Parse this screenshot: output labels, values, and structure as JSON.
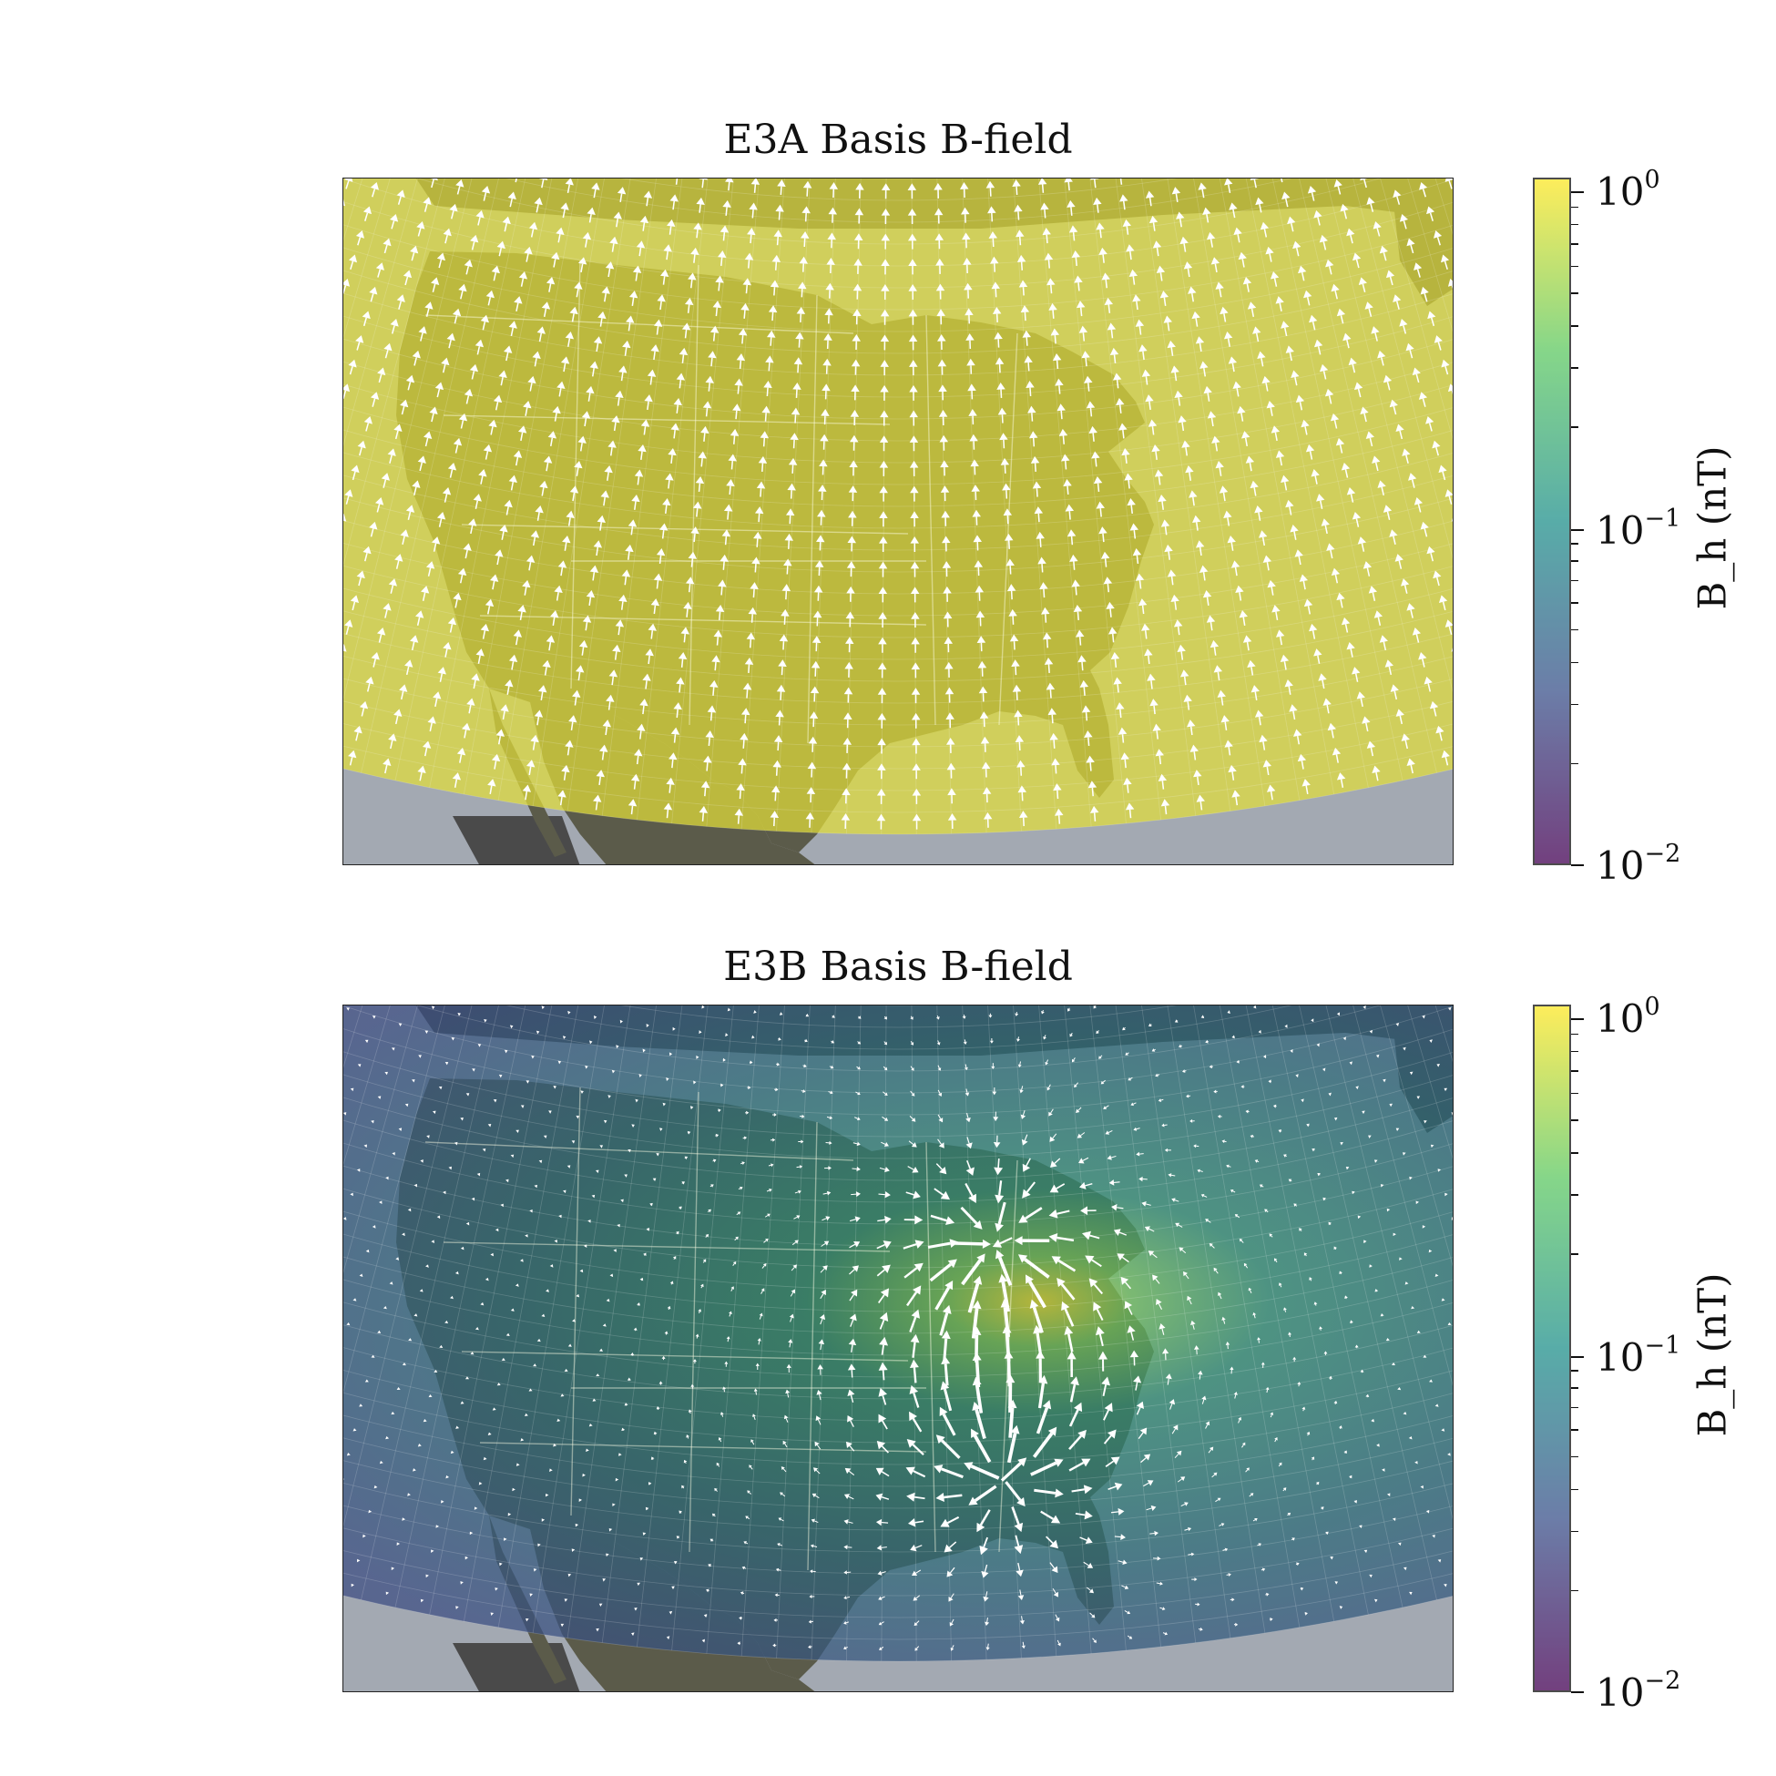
{
  "panels": [
    {
      "title": "E3A Basis B-field",
      "fill_color": "#e6e23a",
      "mode": "uniform"
    },
    {
      "title": "E3B Basis B-field",
      "fill_color": "#2f8f86",
      "mode": "dipole"
    }
  ],
  "colorbar": {
    "label": "B_h (nT)",
    "ticks": [
      {
        "base": "10",
        "exp": "0"
      },
      {
        "base": "10",
        "exp": "−1"
      },
      {
        "base": "10",
        "exp": "−2"
      }
    ],
    "colormap": [
      "#fde725",
      "#5ec962",
      "#21918c",
      "#3b528b",
      "#440154"
    ]
  },
  "colors": {
    "ocean": "#a3a9b2",
    "land_outside": "#4a4a4a",
    "arrow": "#ffffff"
  }
}
